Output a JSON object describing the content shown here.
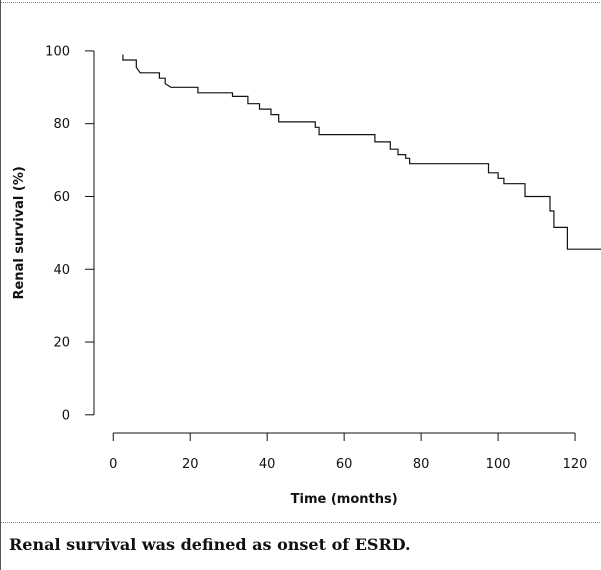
{
  "caption": "Renal survival was defined as onset of ESRD.",
  "chart_data": {
    "type": "line",
    "subtype": "step",
    "xlabel": "Time (months)",
    "ylabel": "Renal survival (%)",
    "xlim": [
      -5,
      127
    ],
    "ylim": [
      -5,
      103
    ],
    "xticks": [
      0,
      20,
      40,
      60,
      80,
      100,
      120
    ],
    "yticks": [
      0,
      20,
      40,
      60,
      80,
      100
    ],
    "grid": false,
    "series": [
      {
        "x": [
          2.5,
          2.5,
          6,
          6,
          7,
          12,
          12,
          13.5,
          13.5,
          15,
          22,
          22,
          31,
          31,
          35,
          35,
          38,
          38,
          41,
          41,
          43,
          43,
          52.5,
          52.5,
          53.5,
          53.5,
          68,
          68,
          72,
          72,
          74,
          74,
          76,
          76,
          77,
          77,
          97.5,
          97.5,
          100,
          100,
          101.5,
          101.5,
          107,
          107,
          113.5,
          113.5,
          114.5,
          114.5,
          118,
          118,
          127
        ],
        "y": [
          99,
          97.5,
          97.5,
          95.5,
          94,
          94,
          92.5,
          92.5,
          91,
          90,
          90,
          88.5,
          88.5,
          87.5,
          87.5,
          85.5,
          85.5,
          84,
          84,
          82.5,
          82.5,
          80.5,
          80.5,
          79,
          79,
          77,
          77,
          75,
          75,
          73,
          73,
          71.5,
          71.5,
          70.5,
          70.5,
          69,
          69,
          66.5,
          66.5,
          65,
          65,
          63.5,
          63.5,
          60,
          60,
          56,
          56,
          51.5,
          51.5,
          45.5,
          45.5
        ]
      }
    ]
  }
}
